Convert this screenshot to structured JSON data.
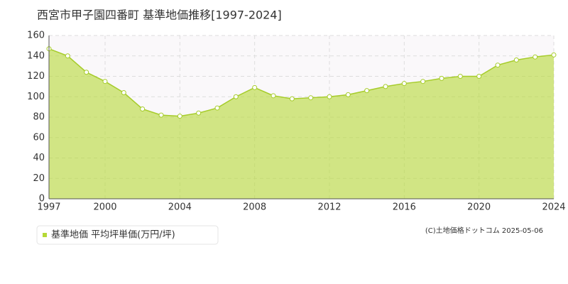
{
  "chart_data": {
    "type": "area",
    "title": "西宮市甲子園四番町 基準地価推移[1997-2024]",
    "x": [
      1997,
      1998,
      1999,
      2000,
      2001,
      2002,
      2003,
      2004,
      2005,
      2006,
      2007,
      2008,
      2009,
      2010,
      2011,
      2012,
      2013,
      2014,
      2015,
      2016,
      2017,
      2018,
      2019,
      2020,
      2021,
      2022,
      2023,
      2024
    ],
    "series": [
      {
        "name": "基準地価 平均坪単価(万円/坪)",
        "color": "#b5d936",
        "values": [
          147,
          140,
          124,
          115,
          104,
          88,
          82,
          81,
          84,
          89,
          100,
          109,
          101,
          98,
          99,
          100,
          102,
          106,
          110,
          113,
          115,
          118,
          120,
          120,
          131,
          136,
          139,
          141
        ]
      }
    ],
    "xlim": [
      1997,
      2024
    ],
    "xticks": [
      1997,
      2000,
      2004,
      2008,
      2012,
      2016,
      2020,
      2024
    ],
    "ylim": [
      0,
      160
    ],
    "yticks": [
      0,
      20,
      40,
      60,
      80,
      100,
      120,
      140,
      160
    ],
    "grid": true,
    "source": "(C)土地価格ドットコム 2025-05-06"
  }
}
